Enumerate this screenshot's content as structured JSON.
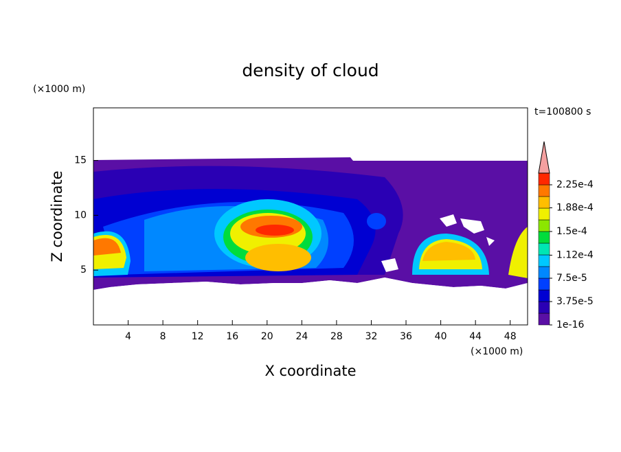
{
  "chart_data": {
    "type": "contour",
    "title": "density of cloud",
    "xlabel": "X coordinate",
    "ylabel": "Z coordinate",
    "xunit": "(×1000 m)",
    "yunit": "(×1000 m)",
    "annotation": "t=100800 s",
    "xlim": [
      0,
      50
    ],
    "ylim": [
      0,
      19.8
    ],
    "xticks": [
      4,
      8,
      12,
      16,
      20,
      24,
      28,
      32,
      36,
      40,
      44,
      48
    ],
    "yticks": [
      5,
      10,
      15
    ],
    "colorbar": {
      "clim": [
        0,
        0.00024375
      ],
      "ticks": [
        {
          "value": 1e-16,
          "label": "1e-16"
        },
        {
          "value": 3.75e-05,
          "label": "3.75e-5"
        },
        {
          "value": 7.5e-05,
          "label": "7.5e-5"
        },
        {
          "value": 0.000112,
          "label": "1.12e-4"
        },
        {
          "value": 0.00015,
          "label": "1.5e-4"
        },
        {
          "value": 0.000188,
          "label": "1.88e-4"
        },
        {
          "value": 0.000225,
          "label": "2.25e-4"
        }
      ],
      "colors": [
        "#5a0fa5",
        "#2a00b4",
        "#0000d2",
        "#0040ff",
        "#0088ff",
        "#00c8ff",
        "#00e6b4",
        "#00dc3c",
        "#8ce600",
        "#f0f000",
        "#ffbe00",
        "#ff7800",
        "#ff2800"
      ],
      "extend_color": "#f4a0a0"
    }
  }
}
